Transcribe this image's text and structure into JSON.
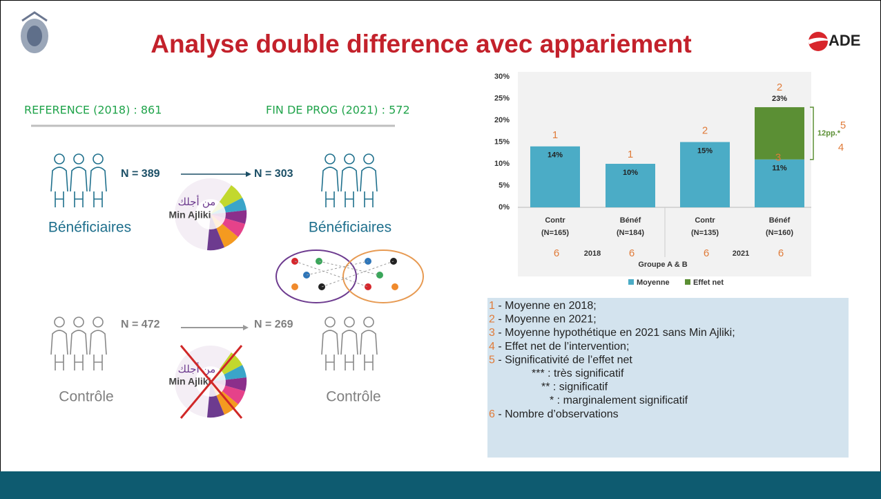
{
  "header": {
    "title": "Analyse double difference avec appariement",
    "logo": "ADE"
  },
  "diagram": {
    "reference": "REFERENCE (2018) : 861",
    "end": "FIN DE PROG (2021) : 572",
    "beneficiaries": {
      "n_start": "N = 389",
      "n_end": "N = 303",
      "label_start": "Bénéficiaires",
      "label_end": "Bénéficiaires"
    },
    "control": {
      "n_start": "N = 472",
      "n_end": "N = 269",
      "label_start": "Contrôle",
      "label_end": "Contrôle"
    },
    "programme_arabic": "من أجلك",
    "programme": "Min Ajliki"
  },
  "chart_data": {
    "type": "stacked-bar",
    "categories": [
      "Contr",
      "Bénéf",
      "Contr",
      "Bénéf"
    ],
    "category_counts": [
      "(N=165)",
      "(N=184)",
      "(N=135)",
      "(N=160)"
    ],
    "groups": [
      "2018",
      "2021"
    ],
    "x_label": "Groupe A & B",
    "ylim": [
      0,
      30
    ],
    "yticks": [
      {
        "value": 0,
        "label": "0%"
      },
      {
        "value": 5,
        "label": "5%"
      },
      {
        "value": 10,
        "label": "10%"
      },
      {
        "value": 15,
        "label": "15%"
      },
      {
        "value": 20,
        "label": "20%"
      },
      {
        "value": 25,
        "label": "25%"
      },
      {
        "value": 30,
        "label": "30%"
      }
    ],
    "series": [
      {
        "name": "Moyenne",
        "color": "#4bacc6",
        "values": [
          14,
          10,
          15,
          11
        ],
        "value_labels": [
          "14%",
          "10%",
          "15%",
          "11%"
        ]
      },
      {
        "name": "Effet net",
        "color": "#5b8f34",
        "values": [
          null,
          null,
          null,
          12
        ],
        "value_labels": [
          null,
          null,
          null,
          "12pp.*"
        ]
      }
    ],
    "total_label": "23%",
    "annotations": {
      "bar_markers": [
        "1",
        "1",
        "2",
        "2"
      ],
      "hypothetical": "3",
      "effect": "4",
      "significance": "5",
      "observations": [
        "6",
        "6",
        "6",
        "6"
      ]
    }
  },
  "notes": [
    {
      "num": "1",
      "text": " - Moyenne en 2018;"
    },
    {
      "num": "2",
      "text": " - Moyenne en 2021;"
    },
    {
      "num": "3",
      "text": " - Moyenne hypothétique en 2021 sans Min Ajliki;"
    },
    {
      "num": "4",
      "text": " - Effet net de l’intervention;"
    },
    {
      "num": "5",
      "text": " - Significativité de l’effet net"
    },
    {
      "num": null,
      "text": "*** : très significatif"
    },
    {
      "num": null,
      "text": "** : significatif"
    },
    {
      "num": null,
      "text": "* : marginalement significatif"
    },
    {
      "num": "6",
      "text": " -  Nombre d’observations"
    }
  ]
}
